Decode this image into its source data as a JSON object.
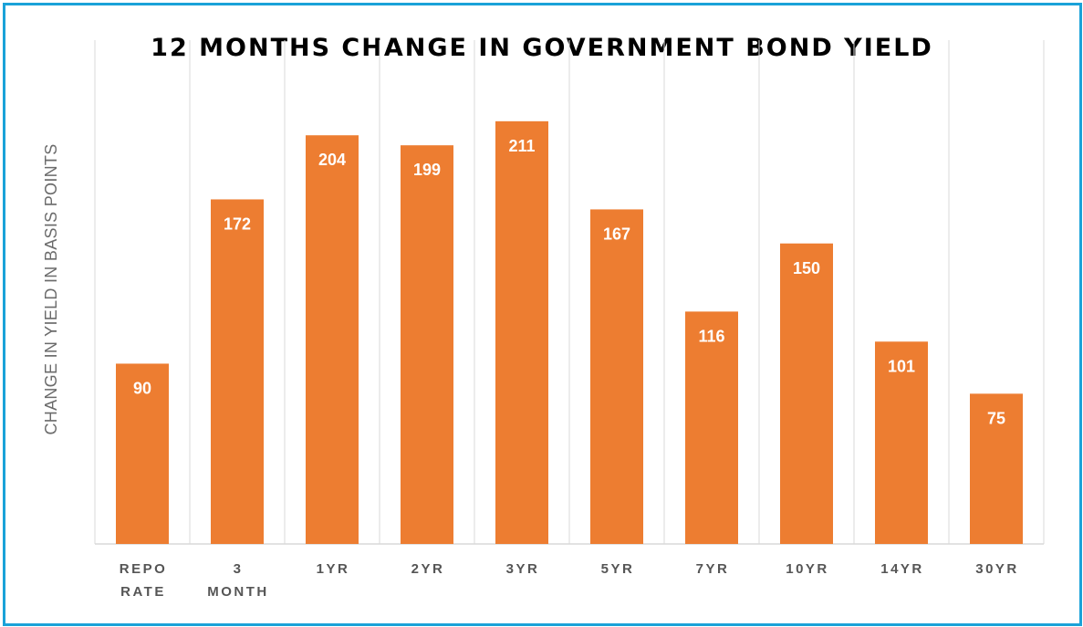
{
  "chart_data": {
    "type": "bar",
    "title": "12 MONTHS CHANGE IN GOVERNMENT BOND YIELD",
    "ylabel": "CHANGE IN YIELD IN BASIS POINTS",
    "xlabel": "",
    "categories": [
      [
        "REPO",
        "RATE"
      ],
      [
        "3",
        "MONTH"
      ],
      [
        "1YR"
      ],
      [
        "2YR"
      ],
      [
        "3YR"
      ],
      [
        "5YR"
      ],
      [
        "7YR"
      ],
      [
        "10YR"
      ],
      [
        "14YR"
      ],
      [
        "30YR"
      ]
    ],
    "values": [
      90,
      172,
      204,
      199,
      211,
      167,
      116,
      150,
      101,
      75
    ],
    "ylim": [
      0,
      250
    ],
    "grid": "vertical",
    "data_labels": "inside-top",
    "colors": {
      "bar": "#ed7d31",
      "label": "#ffffff",
      "grid": "#d9d9d9",
      "frame": "#1aa2d8"
    }
  }
}
